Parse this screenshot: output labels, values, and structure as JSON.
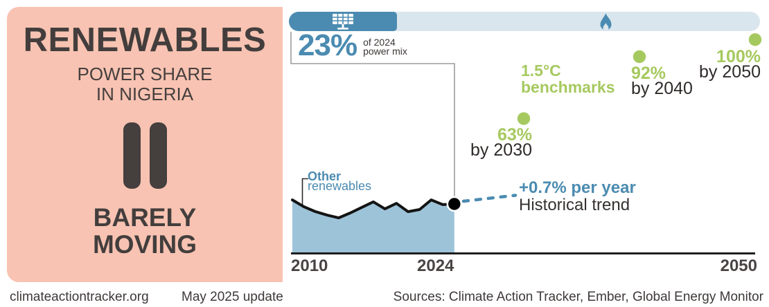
{
  "colors": {
    "accent_orange": "#E86243",
    "panel_pink": "#F8C3B2",
    "brand_blue": "#4B8BB1",
    "track_light_blue": "#DAE6EE",
    "area_blue": "#9DC3D9",
    "benchmark_green": "#A6C95F",
    "dark_text": "#433E3D",
    "line_black": "#141414"
  },
  "panel": {
    "title": "RENEWABLES",
    "subtitle_line1": "POWER SHARE",
    "subtitle_line2": "IN NIGERIA",
    "rating_icon": "pause-icon",
    "rating_line1": "BARELY",
    "rating_line2": "MOVING"
  },
  "progress": {
    "percent": 23,
    "left_icon": "solar-panel-icon",
    "right_icon": "gas-flame-icon"
  },
  "chart_data": {
    "type": "area",
    "title": "Renewables power share in Nigeria",
    "unit": "% of power mix",
    "x": [
      2010,
      2011,
      2012,
      2013,
      2014,
      2015,
      2016,
      2017,
      2018,
      2019,
      2020,
      2021,
      2022,
      2023,
      2024
    ],
    "values": [
      24.9,
      21.7,
      19.4,
      17.8,
      16.5,
      18.8,
      21.4,
      24.0,
      20.7,
      23.3,
      19.4,
      20.4,
      24.9,
      22.7,
      23.0
    ],
    "current_label": "23%",
    "current_caption_line1": "of 2024",
    "current_caption_line2": "power mix",
    "series_label_line1": "Other",
    "series_label_line2": "renewables",
    "trend_label": "+0.7% per year",
    "trend_sublabel": "Historical trend",
    "benchmarks_heading_line1": "1.5°C",
    "benchmarks_heading_line2": "benchmarks",
    "benchmarks": [
      {
        "year": 2030,
        "value": 63,
        "label": "63%",
        "year_label": "by 2030"
      },
      {
        "year": 2040,
        "value": 92,
        "label": "92%",
        "year_label": "by 2040"
      },
      {
        "year": 2050,
        "value": 100,
        "label": "100%",
        "year_label": "by 2050"
      }
    ],
    "x_ticks": [
      "2010",
      "2024",
      "2050"
    ],
    "xlim": [
      2010,
      2050
    ],
    "ylim": [
      0,
      100
    ],
    "grid": false,
    "legend": null
  },
  "footer": {
    "site": "climateactiontracker.org",
    "update": "May 2025 update",
    "sources": "Sources: Climate Action Tracker, Ember, Global Energy Monitor"
  }
}
